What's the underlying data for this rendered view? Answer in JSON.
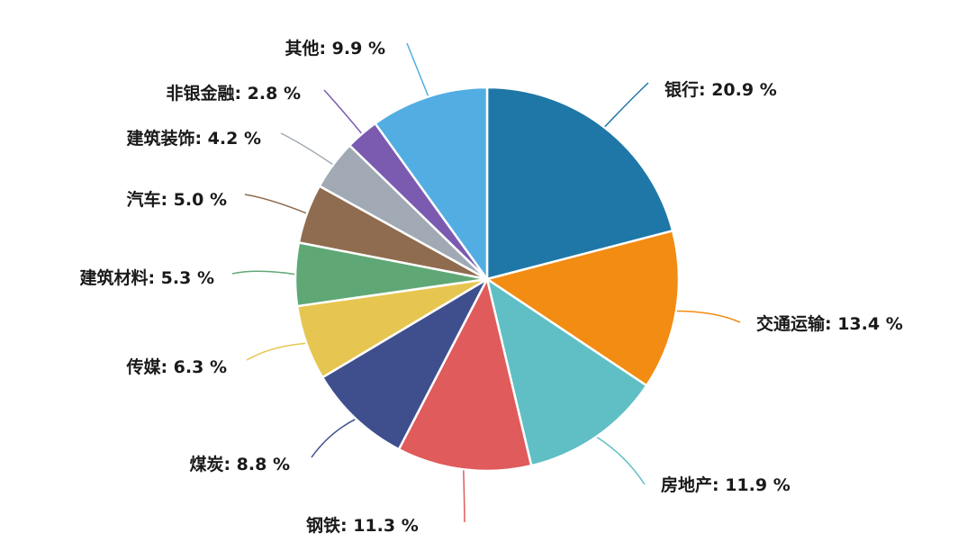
{
  "chart_data": {
    "type": "pie",
    "title": "",
    "slices": [
      {
        "label": "银行",
        "value": 20.9,
        "text": "银行: 20.9 %",
        "color": "#1f77a7"
      },
      {
        "label": "交通运输",
        "value": 13.4,
        "text": "交通运输: 13.4 %",
        "color": "#f28c12"
      },
      {
        "label": "房地产",
        "value": 11.9,
        "text": "房地产: 11.9 %",
        "color": "#5fbfc4"
      },
      {
        "label": "钢铁",
        "value": 11.3,
        "text": "钢铁: 11.3 %",
        "color": "#e05b5b"
      },
      {
        "label": "煤炭",
        "value": 8.8,
        "text": "煤炭: 8.8 %",
        "color": "#3f4f8e"
      },
      {
        "label": "传媒",
        "value": 6.3,
        "text": "传媒: 6.3 %",
        "color": "#e6c650"
      },
      {
        "label": "建筑材料",
        "value": 5.3,
        "text": "建筑材料: 5.3 %",
        "color": "#5fa876"
      },
      {
        "label": "汽车",
        "value": 5.0,
        "text": "汽车: 5.0 %",
        "color": "#8f6c4f"
      },
      {
        "label": "建筑装饰",
        "value": 4.2,
        "text": "建筑装饰: 4.2 %",
        "color": "#a1aab4"
      },
      {
        "label": "非银金融",
        "value": 2.8,
        "text": "非银金融: 2.8 %",
        "color": "#7a5bb0"
      },
      {
        "label": "其他",
        "value": 9.9,
        "text": "其他: 9.9 %",
        "color": "#52aee2"
      }
    ]
  }
}
